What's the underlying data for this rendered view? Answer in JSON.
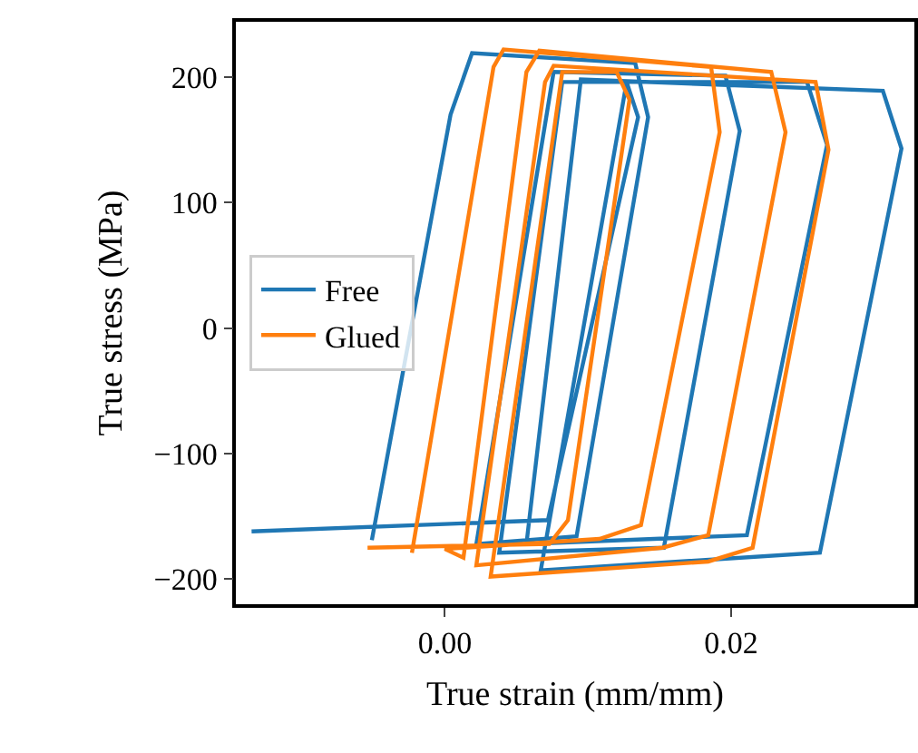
{
  "chart_data": {
    "type": "line",
    "xlabel": "True strain (mm/mm)",
    "ylabel": "True stress (MPa)",
    "xlim": [
      -0.0146,
      0.0328
    ],
    "ylim": [
      -220,
      244
    ],
    "xticks": [
      {
        "value": 0,
        "label": "0.00"
      },
      {
        "value": 0.02,
        "label": "0.02"
      }
    ],
    "yticks": [
      {
        "value": -200,
        "label": "−200"
      },
      {
        "value": -100,
        "label": "−100"
      },
      0,
      100,
      200
    ],
    "grid": false,
    "legend": "left",
    "line_style": "solid",
    "marker": "none",
    "series": [
      {
        "name": "Free",
        "color": "#1f77b4",
        "x": [
          -0.0051,
          0.0004,
          0.0019,
          0.0133,
          0.0142,
          0.0092,
          0.0022,
          0.0076,
          0.0196,
          0.0206,
          0.0153,
          0.0038,
          0.0082,
          0.0253,
          0.0267,
          0.0211,
          0.0057,
          0.0095,
          0.0306,
          0.0319,
          0.0262,
          0.0067,
          0.0127,
          0.0135,
          0.0072,
          -0.0135
        ],
        "values": [
          -169,
          170,
          219,
          211,
          168,
          -166,
          -172,
          204,
          201,
          157,
          -175,
          -179,
          196,
          196,
          146,
          -165,
          -172,
          198,
          189,
          143,
          -179,
          -193,
          196,
          168,
          -153,
          -162
        ]
      },
      {
        "name": "Glued",
        "color": "#ff7f0e",
        "x": [
          -0.0023,
          0.0034,
          0.0041,
          0.0186,
          0.0192,
          0.0137,
          0.0108,
          0.0,
          0.0013,
          0.0057,
          0.0066,
          0.0228,
          0.0238,
          0.0184,
          0.0152,
          0.0022,
          0.007,
          0.0076,
          0.0259,
          0.0268,
          0.0215,
          0.0184,
          0.0032,
          0.0082,
          0.012,
          0.0129,
          0.0086,
          0.0073,
          -0.0054
        ],
        "values": [
          -179,
          208,
          222,
          208,
          156,
          -157,
          -168,
          -176,
          -183,
          204,
          221,
          204,
          156,
          -165,
          -175,
          -189,
          196,
          209,
          196,
          142,
          -175,
          -186,
          -198,
          204,
          204,
          182,
          -153,
          -172,
          -175
        ]
      }
    ]
  }
}
